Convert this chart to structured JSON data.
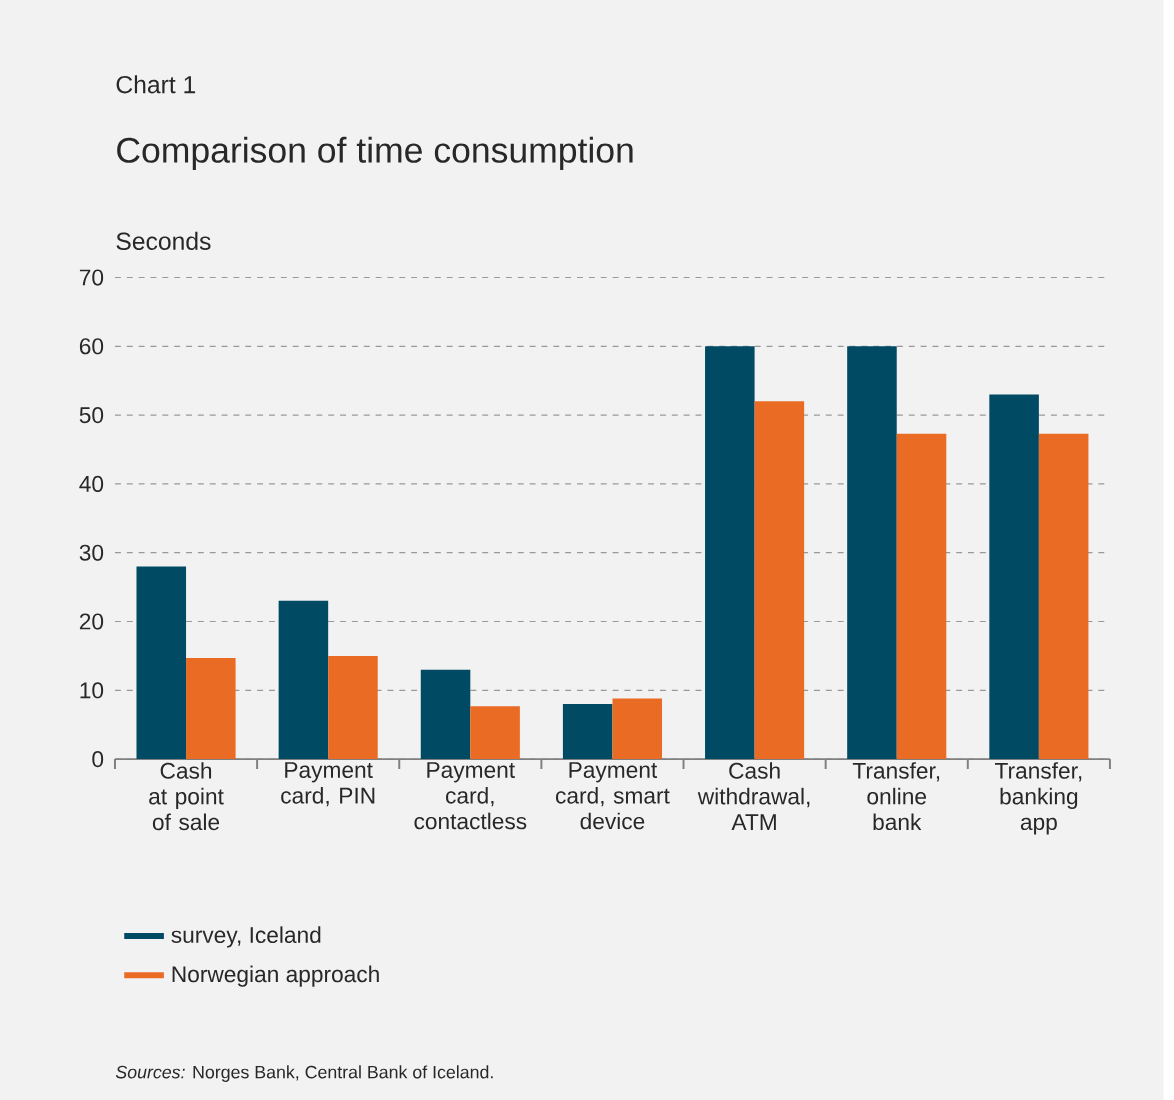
{
  "chart_data": {
    "type": "bar",
    "title": "Comparison of time consumption",
    "annotations": [
      "Chart 1",
      "*Sources:* Norges Bank, Central Bank of Iceland."
    ],
    "ylabel": "Seconds",
    "categories": [
      "Cash at point of sale",
      "Payment card, PIN",
      "Payment card, contactless",
      "Payment card, smart device",
      "Cash withdrawal, ATM",
      "Transfer, online bank",
      "Transfer, banking app"
    ],
    "series": [
      {
        "name": "survey, Iceland",
        "color": "#004a63",
        "values": [
          28,
          23,
          13,
          8,
          60,
          60,
          53
        ]
      },
      {
        "name": "Norwegian approach",
        "color": "#e96b24",
        "values": [
          14.7,
          15,
          7.7,
          8.8,
          52,
          47.3,
          47.3
        ]
      }
    ],
    "ylim": [
      0,
      70
    ],
    "yticks": [
      0,
      10,
      20,
      30,
      40,
      50,
      60,
      70
    ],
    "grid": "y",
    "legend": "bottom"
  }
}
